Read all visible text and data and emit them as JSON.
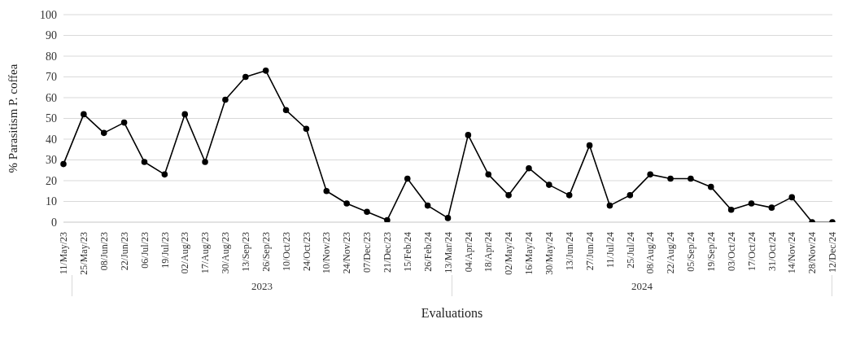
{
  "chart_data": {
    "type": "line",
    "xlabel": "Evaluations",
    "ylabel": "% Parasitism P. coffea",
    "categories": [
      "11/May/23",
      "25/May/23",
      "08/Jun/23",
      "22/Jun/23",
      "06/Jul/23",
      "19/Jul/23",
      "02/Aug/23",
      "17/Aug/23",
      "30/Aug/23",
      "13/Sep/23",
      "26/Sep/23",
      "10/Oct/23",
      "24/Oct/23",
      "10/Nov/23",
      "24/Nov/23",
      "07/Dec/23",
      "21/Dec/23",
      "15/Feb/24",
      "26/Feb/24",
      "13/Mar/24",
      "04/Apr/24",
      "18/Apr/24",
      "02/May/24",
      "16/May/24",
      "30/May/24",
      "13/Jun/24",
      "27/Jun/24",
      "11/Jul/24",
      "25/Jul/24",
      "08/Aug/24",
      "22/Aug/24",
      "05/Sep/24",
      "19/Sep/24",
      "03/Oct/24",
      "17/Oct/24",
      "31/Oct/24",
      "14/Nov/24",
      "28/Nov/24",
      "12/Dec/24"
    ],
    "series": [
      {
        "color": "#000000",
        "values": [
          28,
          52,
          43,
          48,
          29,
          23,
          52,
          29,
          59,
          70,
          73,
          54,
          45,
          15,
          9,
          5,
          1,
          21,
          8,
          2,
          42,
          23,
          13,
          26,
          18,
          13,
          37,
          8,
          13,
          23,
          21,
          21,
          17,
          6,
          9,
          7,
          12,
          0,
          0
        ]
      }
    ],
    "ylim": [
      0,
      100
    ],
    "yticks": [
      0,
      10,
      20,
      30,
      40,
      50,
      60,
      70,
      80,
      90,
      100
    ],
    "grid": "y",
    "marker": "circle",
    "line_style": "solid",
    "annotations": [
      "2023",
      "2024"
    ]
  }
}
